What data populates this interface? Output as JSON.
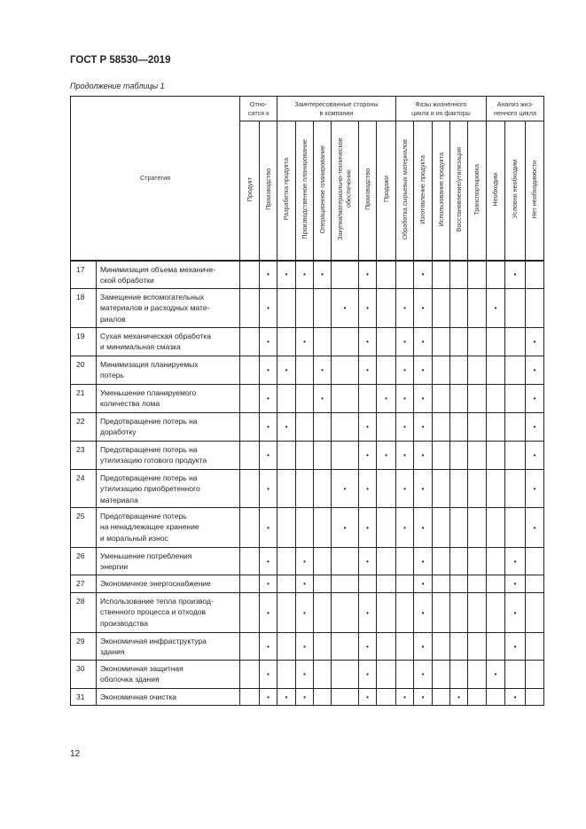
{
  "header": {
    "doc_title": "ГОСТ Р 58530—2019",
    "caption": "Продолжение таблицы 1"
  },
  "table": {
    "strategy_header": "Стратегия",
    "groups": [
      {
        "label": "Отно-\nсится к",
        "span": 2
      },
      {
        "label": "Заинтересованные стороны\nв компании",
        "span": 6
      },
      {
        "label": "Фазы жизненного\nцикла и их факторы",
        "span": 5
      },
      {
        "label": "Анализ жиз-\nненного цикла",
        "span": 3
      }
    ],
    "columns": [
      "Продукт",
      "Производство",
      "Разработка продукта",
      "Производственное планирование",
      "Операционное планирование",
      "Закупки/материально-техническое обеспечение",
      "Производство",
      "Продажи",
      "Обработка сырьевых материалов",
      "Изготовление продукта",
      "Использование продукта",
      "Восстановление/утилизация",
      "Транспортировка",
      "Необходим",
      "Условно необходим",
      "Нет необходимости"
    ],
    "mark_symbol": "•",
    "rows": [
      {
        "num": "17",
        "text": "Минимизация объема механиче-\nской обработки",
        "marks": [
          1,
          2,
          3,
          4,
          6,
          9,
          14
        ]
      },
      {
        "num": "18",
        "text": "Замещение вспомогательных\nматериалов и расходных мате-\nриалов",
        "marks": [
          1,
          5,
          6,
          8,
          9,
          13
        ]
      },
      {
        "num": "19",
        "text": "Сухая механическая обработка\nи минимальная смазка",
        "marks": [
          1,
          3,
          6,
          8,
          9,
          15
        ]
      },
      {
        "num": "20",
        "text": "Минимизация планируемых\nпотерь",
        "marks": [
          1,
          2,
          4,
          6,
          8,
          9,
          15
        ]
      },
      {
        "num": "21",
        "text": "Уменьшение планируемого\nколичества лома",
        "marks": [
          1,
          4,
          7,
          8,
          9,
          15
        ]
      },
      {
        "num": "22",
        "text": "Предотвращение потерь на\n доработку",
        "marks": [
          1,
          2,
          6,
          8,
          9,
          15
        ]
      },
      {
        "num": "23",
        "text": "Предотвращение потерь на\n утилизацию готового продукта",
        "marks": [
          1,
          6,
          7,
          8,
          9,
          15
        ]
      },
      {
        "num": "24",
        "text": "Предотвращение потерь на\nутилизацию приобретенного\nматериала",
        "marks": [
          1,
          5,
          6,
          8,
          9,
          15
        ]
      },
      {
        "num": "25",
        "text": "Предотвращение потерь\nна ненадлежащее хранение\nи моральный износ",
        "marks": [
          1,
          5,
          6,
          8,
          9,
          15
        ]
      },
      {
        "num": "26",
        "text": "Уменьшение потребления\nэнергии",
        "marks": [
          1,
          3,
          6,
          9,
          14
        ]
      },
      {
        "num": "27",
        "text": "Экономичное энергоснабжение",
        "marks": [
          1,
          3,
          9,
          14
        ]
      },
      {
        "num": "28",
        "text": "Использование тепла производ-\nственного процесса и отходов\nпроизводства",
        "marks": [
          1,
          3,
          6,
          9,
          14
        ]
      },
      {
        "num": "29",
        "text": "Экономичная инфраструктура\nздания",
        "marks": [
          1,
          3,
          6,
          9,
          14
        ]
      },
      {
        "num": "30",
        "text": "Экономичная защитная\nоболочка здания",
        "marks": [
          1,
          3,
          6,
          9,
          13
        ]
      },
      {
        "num": "31",
        "text": "Экономичная очистка",
        "marks": [
          1,
          2,
          3,
          6,
          8,
          9,
          11,
          14
        ]
      }
    ]
  },
  "footer": {
    "page_number": "12"
  }
}
